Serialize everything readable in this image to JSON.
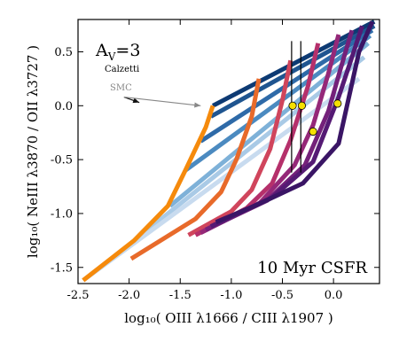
{
  "chart_data": {
    "type": "line",
    "xlabel": "log₁₀( OIII λ1666 / CIII λ1907 )",
    "ylabel": "log₁₀( NeIII λ3870 / OII λ3727 )",
    "xlim": [
      -2.5,
      0.45
    ],
    "ylim": [
      -1.65,
      0.8
    ],
    "xticks": [
      -2.5,
      -2.0,
      -1.5,
      -1.0,
      -0.5,
      0.0
    ],
    "xtick_labels": [
      "-2.5",
      "-2.0",
      "-1.5",
      "-1.0",
      "-0.5",
      "0.0"
    ],
    "yticks": [
      -1.5,
      -1.0,
      -0.5,
      0.0,
      0.5
    ],
    "ytick_labels": [
      "-1.5",
      "-1.0",
      "-0.5",
      "0.0",
      "0.5"
    ],
    "grid": false,
    "annotations": {
      "av_label": "A",
      "av_sub": "V",
      "av_value": "=3",
      "calzetti": "Calzetti",
      "smc": "SMC",
      "corner_label": "10 Myr CSFR"
    },
    "arrows": [
      {
        "name": "calzetti-arrow",
        "from": [
          -2.05,
          0.08
        ],
        "to": [
          -1.9,
          0.03
        ],
        "color": "#111111"
      },
      {
        "name": "smc-arrow",
        "from": [
          -2.05,
          0.08
        ],
        "to": [
          -1.3,
          0.0
        ],
        "color": "#888888"
      }
    ],
    "blue_lines": [
      {
        "name": "blue-line-1",
        "color": "#0d3a73",
        "points": [
          [
            -1.18,
            0.0
          ],
          [
            0.4,
            0.78
          ]
        ]
      },
      {
        "name": "blue-line-2",
        "color": "#1f5590",
        "points": [
          [
            -1.2,
            -0.1
          ],
          [
            0.4,
            0.74
          ]
        ]
      },
      {
        "name": "blue-line-3",
        "color": "#2e6aa8",
        "points": [
          [
            -1.3,
            -0.33
          ],
          [
            0.38,
            0.7
          ]
        ]
      },
      {
        "name": "blue-line-4",
        "color": "#4b8ac0",
        "points": [
          [
            -1.45,
            -0.6
          ],
          [
            0.36,
            0.65
          ]
        ]
      },
      {
        "name": "blue-line-5",
        "color": "#7eb1d8",
        "points": [
          [
            -1.6,
            -0.93
          ],
          [
            0.34,
            0.58
          ]
        ]
      },
      {
        "name": "blue-line-6",
        "color": "#a9cae6",
        "points": [
          [
            -1.95,
            -1.25
          ],
          [
            0.3,
            0.45
          ]
        ]
      },
      {
        "name": "blue-line-7",
        "color": "#c8dbef",
        "points": [
          [
            -2.45,
            -1.62
          ],
          [
            0.25,
            0.25
          ]
        ]
      }
    ],
    "tracks": [
      {
        "name": "track-orange",
        "color": "#f58a0c",
        "points": [
          [
            -1.18,
            0.0
          ],
          [
            -1.25,
            -0.2
          ],
          [
            -1.45,
            -0.6
          ],
          [
            -1.62,
            -0.93
          ],
          [
            -1.95,
            -1.25
          ],
          [
            -2.45,
            -1.62
          ]
        ]
      },
      {
        "name": "track-dark-orange",
        "color": "#e86a2a",
        "points": [
          [
            -0.73,
            0.25
          ],
          [
            -0.8,
            -0.1
          ],
          [
            -0.95,
            -0.5
          ],
          [
            -1.1,
            -0.8
          ],
          [
            -1.35,
            -1.05
          ],
          [
            -1.98,
            -1.42
          ]
        ]
      },
      {
        "name": "track-red",
        "color": "#d0455c",
        "points": [
          [
            -0.42,
            0.42
          ],
          [
            -0.5,
            0.05
          ],
          [
            -0.62,
            -0.4
          ],
          [
            -0.8,
            -0.78
          ],
          [
            -1.0,
            -0.98
          ],
          [
            -1.42,
            -1.2
          ]
        ]
      },
      {
        "name": "track-crimson",
        "color": "#b5306b",
        "points": [
          [
            -0.15,
            0.58
          ],
          [
            -0.25,
            0.18
          ],
          [
            -0.42,
            -0.32
          ],
          [
            -0.6,
            -0.72
          ],
          [
            -0.85,
            -0.95
          ],
          [
            -1.35,
            -1.2
          ]
        ]
      },
      {
        "name": "track-magenta",
        "color": "#952878",
        "points": [
          [
            0.05,
            0.66
          ],
          [
            -0.05,
            0.3
          ],
          [
            -0.2,
            -0.18
          ],
          [
            -0.38,
            -0.55
          ],
          [
            -0.72,
            -0.9
          ],
          [
            -1.3,
            -1.18
          ]
        ]
      },
      {
        "name": "track-purple",
        "color": "#74217a",
        "points": [
          [
            0.18,
            0.7
          ],
          [
            0.08,
            0.38
          ],
          [
            -0.05,
            -0.05
          ],
          [
            -0.28,
            -0.55
          ],
          [
            -0.65,
            -0.88
          ],
          [
            -1.25,
            -1.15
          ]
        ]
      },
      {
        "name": "track-deep-purple",
        "color": "#551a74",
        "points": [
          [
            0.28,
            0.74
          ],
          [
            0.18,
            0.45
          ],
          [
            0.05,
            0.08
          ],
          [
            -0.2,
            -0.52
          ],
          [
            -0.6,
            -0.85
          ],
          [
            -1.2,
            -1.12
          ]
        ]
      },
      {
        "name": "track-indigo",
        "color": "#3a1565",
        "points": [
          [
            0.38,
            0.78
          ],
          [
            0.25,
            0.5
          ],
          [
            0.05,
            -0.35
          ],
          [
            -0.3,
            -0.72
          ],
          [
            -0.75,
            -0.92
          ],
          [
            -1.15,
            -1.08
          ]
        ]
      }
    ],
    "vertical_lines": [
      {
        "name": "vline-1",
        "x": -0.41,
        "y_from": -0.62,
        "y_to": 0.6
      },
      {
        "name": "vline-2",
        "x": -0.32,
        "y_from": -0.62,
        "y_to": 0.6
      }
    ],
    "data_points": [
      {
        "x": -0.4,
        "y": 0.0
      },
      {
        "x": -0.31,
        "y": 0.0
      },
      {
        "x": -0.2,
        "y": -0.24
      },
      {
        "x": 0.04,
        "y": 0.02
      }
    ],
    "point_color": "#f5e000"
  }
}
